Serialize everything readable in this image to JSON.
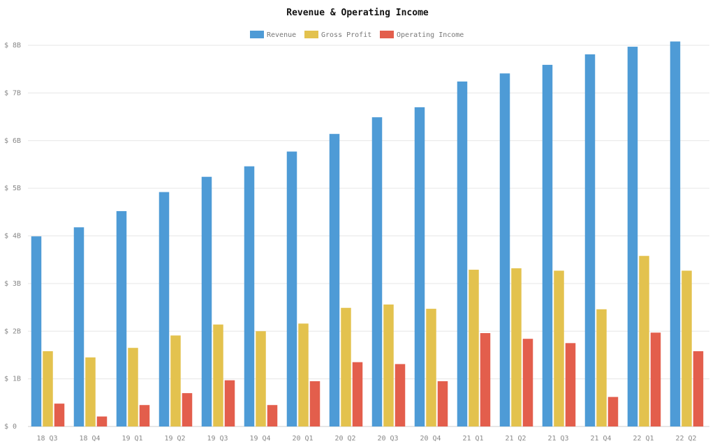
{
  "chart_data": {
    "type": "bar",
    "title": "Revenue & Operating Income",
    "categories": [
      "18 Q3",
      "18 Q4",
      "19 Q1",
      "19 Q2",
      "19 Q3",
      "19 Q4",
      "20 Q1",
      "20 Q2",
      "20 Q3",
      "20 Q4",
      "21 Q1",
      "21 Q2",
      "21 Q3",
      "21 Q4",
      "22 Q1",
      "22 Q2"
    ],
    "series": [
      {
        "name": "Revenue",
        "color": "#4e9bd6",
        "values": [
          3.99,
          4.18,
          4.52,
          4.92,
          5.24,
          5.46,
          5.77,
          6.14,
          6.49,
          6.7,
          7.24,
          7.41,
          7.59,
          7.81,
          7.97,
          8.08
        ]
      },
      {
        "name": "Gross Profit",
        "color": "#e3c24e",
        "values": [
          1.58,
          1.45,
          1.65,
          1.91,
          2.14,
          2.0,
          2.16,
          2.49,
          2.56,
          2.47,
          3.29,
          3.32,
          3.27,
          2.46,
          3.58,
          3.27
        ]
      },
      {
        "name": "Operating Income",
        "color": "#e35e4c",
        "values": [
          0.48,
          0.21,
          0.45,
          0.7,
          0.97,
          0.45,
          0.95,
          1.35,
          1.31,
          0.95,
          1.96,
          1.84,
          1.75,
          0.62,
          1.97,
          1.58
        ]
      }
    ],
    "y_ticks": [
      "$ 0",
      "$ 1B",
      "$ 2B",
      "$ 3B",
      "$ 4B",
      "$ 5B",
      "$ 6B",
      "$ 7B",
      "$ 8B"
    ],
    "ylim": [
      0,
      8
    ],
    "xlabel": "",
    "ylabel": "",
    "grid": true,
    "legend_position": "top-center"
  }
}
